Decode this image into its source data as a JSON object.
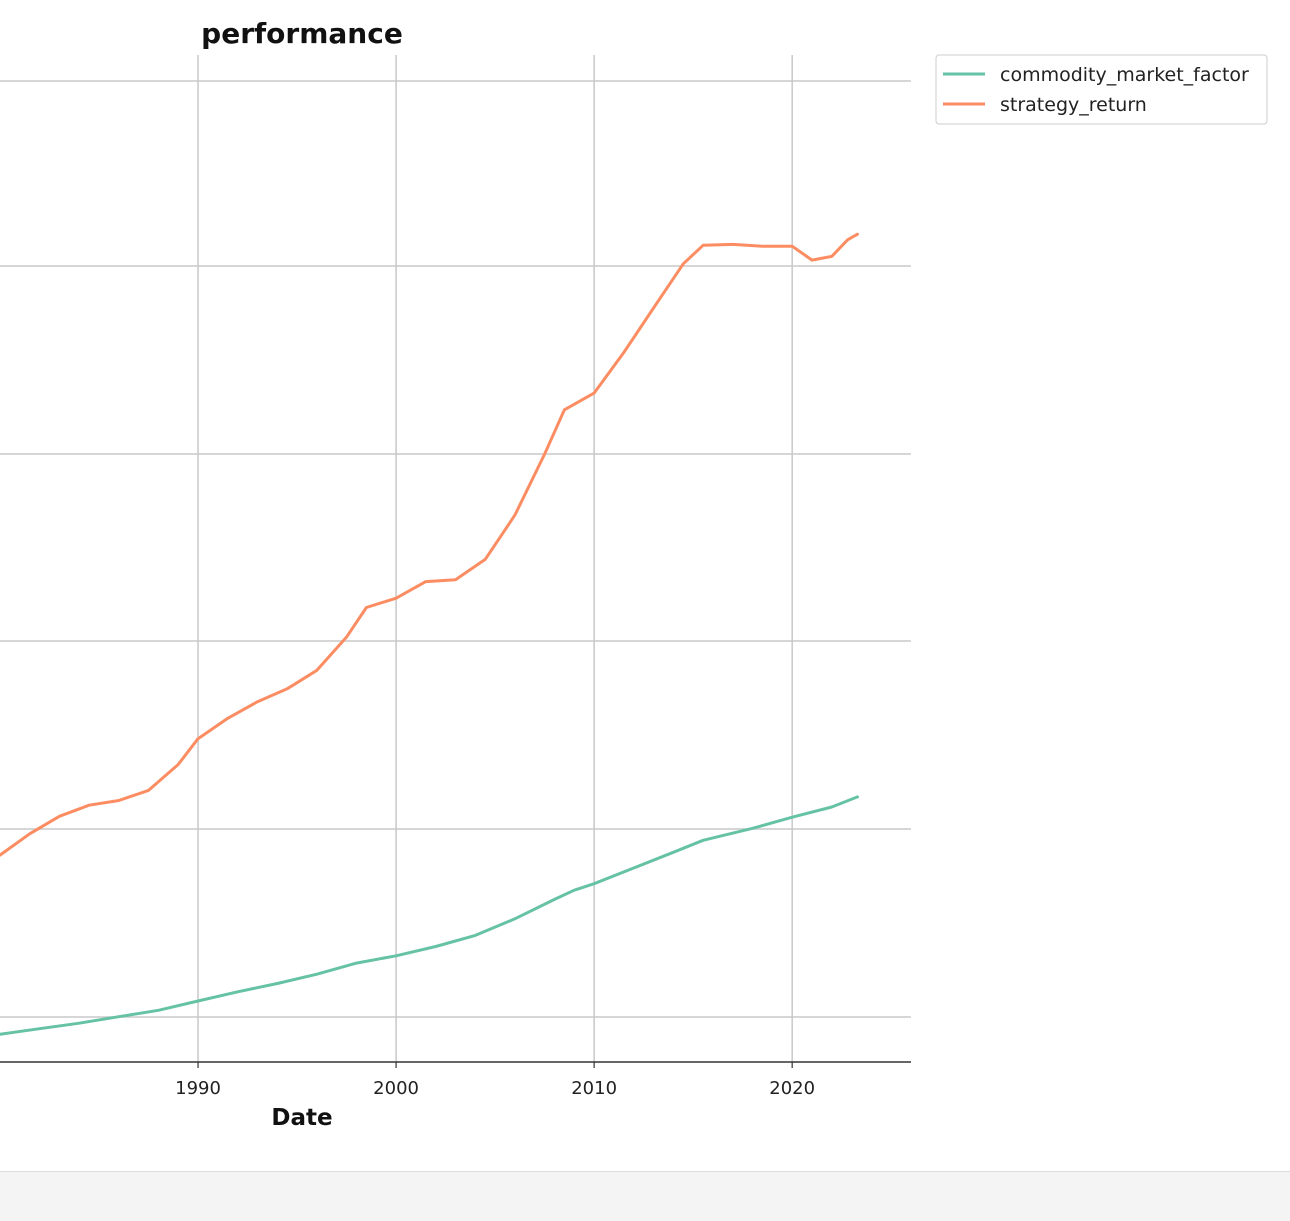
{
  "chart_data": {
    "type": "line",
    "title": "performance",
    "xlabel": "Date",
    "ylabel": "",
    "x_ticks": [
      "1990",
      "2000",
      "2010",
      "2020"
    ],
    "xlim": [
      1980.0,
      2026.0
    ],
    "ylim": [
      0.0,
      5.45
    ],
    "grid": true,
    "legend_position": "outside top-right",
    "series": [
      {
        "name": "commodity_market_factor",
        "color": "#66c2a5",
        "points": [
          [
            1980.0,
            0.15
          ],
          [
            1982.0,
            0.18
          ],
          [
            1984.0,
            0.21
          ],
          [
            1986.0,
            0.245
          ],
          [
            1988.0,
            0.28
          ],
          [
            1990.0,
            0.33
          ],
          [
            1992.0,
            0.38
          ],
          [
            1994.0,
            0.425
          ],
          [
            1996.0,
            0.475
          ],
          [
            1998.0,
            0.535
          ],
          [
            2000.0,
            0.575
          ],
          [
            2002.0,
            0.625
          ],
          [
            2004.0,
            0.685
          ],
          [
            2006.0,
            0.775
          ],
          [
            2008.0,
            0.88
          ],
          [
            2009.0,
            0.93
          ],
          [
            2010.0,
            0.965
          ],
          [
            2012.0,
            1.05
          ],
          [
            2014.0,
            1.135
          ],
          [
            2015.5,
            1.2
          ],
          [
            2018.0,
            1.265
          ],
          [
            2020.0,
            1.325
          ],
          [
            2022.0,
            1.38
          ],
          [
            2023.3,
            1.435
          ]
        ]
      },
      {
        "name": "strategy_return",
        "color": "#fc8d62",
        "points": [
          [
            1980.0,
            1.12
          ],
          [
            1981.5,
            1.235
          ],
          [
            1983.0,
            1.33
          ],
          [
            1984.5,
            1.39
          ],
          [
            1986.0,
            1.415
          ],
          [
            1987.5,
            1.47
          ],
          [
            1989.0,
            1.61
          ],
          [
            1990.0,
            1.75
          ],
          [
            1991.5,
            1.86
          ],
          [
            1993.0,
            1.95
          ],
          [
            1994.5,
            2.02
          ],
          [
            1996.0,
            2.12
          ],
          [
            1997.5,
            2.3
          ],
          [
            1998.5,
            2.46
          ],
          [
            2000.0,
            2.51
          ],
          [
            2001.5,
            2.6
          ],
          [
            2003.0,
            2.61
          ],
          [
            2004.5,
            2.72
          ],
          [
            2006.0,
            2.96
          ],
          [
            2007.5,
            3.29
          ],
          [
            2008.5,
            3.53
          ],
          [
            2010.0,
            3.62
          ],
          [
            2011.5,
            3.84
          ],
          [
            2013.0,
            4.08
          ],
          [
            2014.5,
            4.32
          ],
          [
            2015.5,
            4.42
          ],
          [
            2017.0,
            4.425
          ],
          [
            2018.5,
            4.415
          ],
          [
            2020.0,
            4.415
          ],
          [
            2021.0,
            4.34
          ],
          [
            2022.0,
            4.36
          ],
          [
            2022.8,
            4.45
          ],
          [
            2023.3,
            4.48
          ]
        ]
      }
    ]
  }
}
